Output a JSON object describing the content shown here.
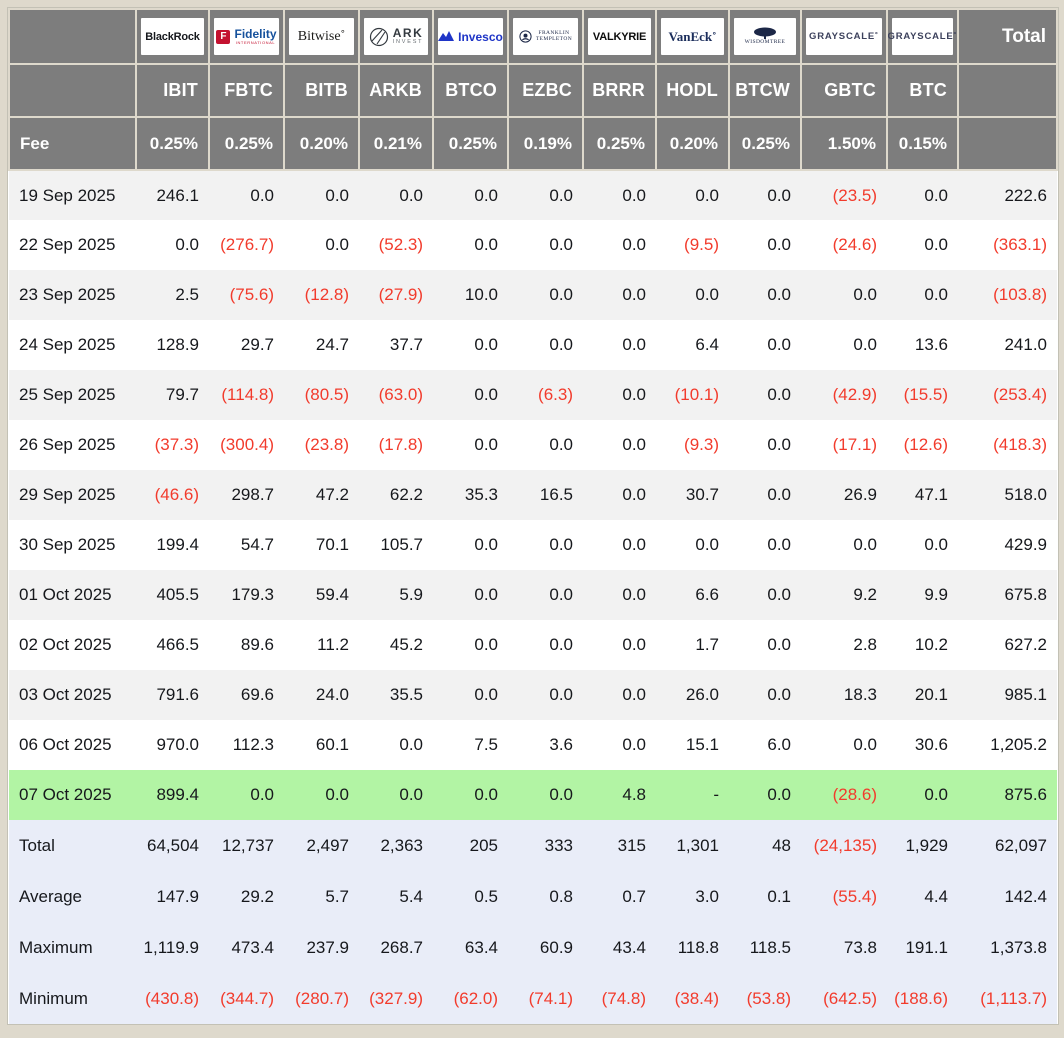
{
  "table": {
    "fee_label": "Fee",
    "total_header": "Total",
    "providers": [
      {
        "name": "BlackRock",
        "ticker": "IBIT",
        "fee": "0.25%",
        "logo": {
          "type": "blackrock",
          "lines": [
            "BlackRock"
          ]
        }
      },
      {
        "name": "Fidelity",
        "ticker": "FBTC",
        "fee": "0.25%",
        "logo": {
          "type": "fidelity",
          "lines": [
            "F",
            "Fidelity",
            "INTERNATIONAL"
          ]
        }
      },
      {
        "name": "Bitwise",
        "ticker": "BITB",
        "fee": "0.20%",
        "logo": {
          "type": "bitwise",
          "lines": [
            "Bitwise˚"
          ]
        }
      },
      {
        "name": "ARK Invest",
        "ticker": "ARKB",
        "fee": "0.21%",
        "logo": {
          "type": "ark",
          "lines": [
            "ARK",
            "INVEST"
          ]
        }
      },
      {
        "name": "Invesco",
        "ticker": "BTCO",
        "fee": "0.25%",
        "logo": {
          "type": "invesco",
          "lines": [
            "Invesco"
          ]
        }
      },
      {
        "name": "Franklin Templeton",
        "ticker": "EZBC",
        "fee": "0.19%",
        "logo": {
          "type": "franklin",
          "lines": [
            "FRANKLIN",
            "TEMPLETON"
          ]
        }
      },
      {
        "name": "Valkyrie",
        "ticker": "BRRR",
        "fee": "0.25%",
        "logo": {
          "type": "valkyrie",
          "lines": [
            "VALKYRIE"
          ]
        }
      },
      {
        "name": "VanEck",
        "ticker": "HODL",
        "fee": "0.20%",
        "logo": {
          "type": "vaneck",
          "lines": [
            "VanEck˚"
          ]
        }
      },
      {
        "name": "WisdomTree",
        "ticker": "BTCW",
        "fee": "0.25%",
        "logo": {
          "type": "wisdomtree",
          "lines": [
            "WISDOMTREE"
          ]
        }
      },
      {
        "name": "Grayscale",
        "ticker": "GBTC",
        "fee": "1.50%",
        "logo": {
          "type": "grayscale",
          "lines": [
            "GRAYSCALE˚"
          ]
        }
      },
      {
        "name": "Grayscale",
        "ticker": "BTC",
        "fee": "0.15%",
        "logo": {
          "type": "grayscale",
          "lines": [
            "GRAYSCALE˚"
          ]
        }
      }
    ],
    "rows": [
      {
        "date": "19 Sep 2025",
        "highlight": false,
        "values": [
          "246.1",
          "0.0",
          "0.0",
          "0.0",
          "0.0",
          "0.0",
          "0.0",
          "0.0",
          "0.0",
          "(23.5)",
          "0.0",
          "222.6"
        ]
      },
      {
        "date": "22 Sep 2025",
        "highlight": false,
        "values": [
          "0.0",
          "(276.7)",
          "0.0",
          "(52.3)",
          "0.0",
          "0.0",
          "0.0",
          "(9.5)",
          "0.0",
          "(24.6)",
          "0.0",
          "(363.1)"
        ]
      },
      {
        "date": "23 Sep 2025",
        "highlight": false,
        "values": [
          "2.5",
          "(75.6)",
          "(12.8)",
          "(27.9)",
          "10.0",
          "0.0",
          "0.0",
          "0.0",
          "0.0",
          "0.0",
          "0.0",
          "(103.8)"
        ]
      },
      {
        "date": "24 Sep 2025",
        "highlight": false,
        "values": [
          "128.9",
          "29.7",
          "24.7",
          "37.7",
          "0.0",
          "0.0",
          "0.0",
          "6.4",
          "0.0",
          "0.0",
          "13.6",
          "241.0"
        ]
      },
      {
        "date": "25 Sep 2025",
        "highlight": false,
        "values": [
          "79.7",
          "(114.8)",
          "(80.5)",
          "(63.0)",
          "0.0",
          "(6.3)",
          "0.0",
          "(10.1)",
          "0.0",
          "(42.9)",
          "(15.5)",
          "(253.4)"
        ]
      },
      {
        "date": "26 Sep 2025",
        "highlight": false,
        "values": [
          "(37.3)",
          "(300.4)",
          "(23.8)",
          "(17.8)",
          "0.0",
          "0.0",
          "0.0",
          "(9.3)",
          "0.0",
          "(17.1)",
          "(12.6)",
          "(418.3)"
        ]
      },
      {
        "date": "29 Sep 2025",
        "highlight": false,
        "values": [
          "(46.6)",
          "298.7",
          "47.2",
          "62.2",
          "35.3",
          "16.5",
          "0.0",
          "30.7",
          "0.0",
          "26.9",
          "47.1",
          "518.0"
        ]
      },
      {
        "date": "30 Sep 2025",
        "highlight": false,
        "values": [
          "199.4",
          "54.7",
          "70.1",
          "105.7",
          "0.0",
          "0.0",
          "0.0",
          "0.0",
          "0.0",
          "0.0",
          "0.0",
          "429.9"
        ]
      },
      {
        "date": "01 Oct 2025",
        "highlight": false,
        "values": [
          "405.5",
          "179.3",
          "59.4",
          "5.9",
          "0.0",
          "0.0",
          "0.0",
          "6.6",
          "0.0",
          "9.2",
          "9.9",
          "675.8"
        ]
      },
      {
        "date": "02 Oct 2025",
        "highlight": false,
        "values": [
          "466.5",
          "89.6",
          "11.2",
          "45.2",
          "0.0",
          "0.0",
          "0.0",
          "1.7",
          "0.0",
          "2.8",
          "10.2",
          "627.2"
        ]
      },
      {
        "date": "03 Oct 2025",
        "highlight": false,
        "values": [
          "791.6",
          "69.6",
          "24.0",
          "35.5",
          "0.0",
          "0.0",
          "0.0",
          "26.0",
          "0.0",
          "18.3",
          "20.1",
          "985.1"
        ]
      },
      {
        "date": "06 Oct 2025",
        "highlight": false,
        "values": [
          "970.0",
          "112.3",
          "60.1",
          "0.0",
          "7.5",
          "3.6",
          "0.0",
          "15.1",
          "6.0",
          "0.0",
          "30.6",
          "1,205.2"
        ]
      },
      {
        "date": "07 Oct 2025",
        "highlight": true,
        "values": [
          "899.4",
          "0.0",
          "0.0",
          "0.0",
          "0.0",
          "0.0",
          "4.8",
          "-",
          "0.0",
          "(28.6)",
          "0.0",
          "875.6"
        ]
      }
    ],
    "summary": [
      {
        "label": "Total",
        "values": [
          "64,504",
          "12,737",
          "2,497",
          "2,363",
          "205",
          "333",
          "315",
          "1,301",
          "48",
          "(24,135)",
          "1,929",
          "62,097"
        ]
      },
      {
        "label": "Average",
        "values": [
          "147.9",
          "29.2",
          "5.7",
          "5.4",
          "0.5",
          "0.8",
          "0.7",
          "3.0",
          "0.1",
          "(55.4)",
          "4.4",
          "142.4"
        ]
      },
      {
        "label": "Maximum",
        "values": [
          "1,119.9",
          "473.4",
          "237.9",
          "268.7",
          "63.4",
          "60.9",
          "43.4",
          "118.8",
          "118.5",
          "73.8",
          "191.1",
          "1,373.8"
        ]
      },
      {
        "label": "Minimum",
        "values": [
          "(430.8)",
          "(344.7)",
          "(280.7)",
          "(327.9)",
          "(62.0)",
          "(74.1)",
          "(74.8)",
          "(38.4)",
          "(53.8)",
          "(642.5)",
          "(188.6)",
          "(1,113.7)"
        ]
      }
    ]
  },
  "colors": {
    "page_background": "#ded9cc",
    "header_gray": "#7d7d7d",
    "row_stripe": "#f2f2f2",
    "highlight_green": "#b2f4a4",
    "summary_blue": "#e9edf8",
    "negative_red": "#f23b2c"
  }
}
